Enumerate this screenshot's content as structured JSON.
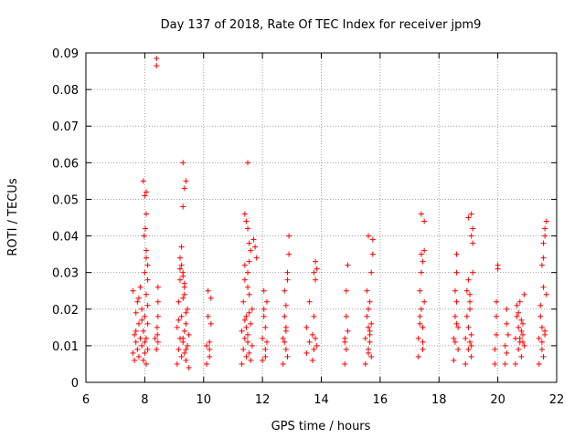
{
  "chart_data": {
    "type": "scatter",
    "title": "Day 137 of 2018, Rate Of TEC Index for receiver jpm9",
    "xlabel": "GPS time / hours",
    "ylabel": "ROTI / TECUs",
    "xlim": [
      6,
      22
    ],
    "ylim": [
      0,
      0.09
    ],
    "grid": true,
    "marker": "+",
    "marker_color": "#ff0000",
    "x_ticks": [
      6,
      8,
      10,
      12,
      14,
      16,
      18,
      20,
      22
    ],
    "x_tick_labels": [
      "6",
      "8",
      "10",
      "12",
      "14",
      "16",
      "18",
      "20",
      "22"
    ],
    "y_ticks": [
      0,
      0.01,
      0.02,
      0.03,
      0.04,
      0.05,
      0.06,
      0.07,
      0.08,
      0.09
    ],
    "y_tick_labels": [
      "0",
      "0.01",
      "0.02",
      "0.03",
      "0.04",
      "0.05",
      "0.06",
      "0.07",
      "0.08",
      "0.09"
    ],
    "series": [
      {
        "name": "ROTI",
        "x": [
          7.6,
          7.6,
          7.65,
          7.65,
          7.7,
          7.7,
          7.75,
          7.75,
          7.8,
          7.8,
          7.85,
          7.85,
          7.9,
          7.9,
          7.95,
          7.95,
          8.0,
          8.0,
          8.0,
          8.0,
          8.05,
          8.05,
          8.05,
          8.05,
          8.1,
          8.1,
          8.1,
          8.1,
          7.98,
          8.02,
          8.05,
          8.0,
          8.05,
          7.95,
          8.1,
          8.05,
          7.7,
          7.8,
          7.9,
          8.4,
          8.4,
          8.45,
          8.45,
          8.35,
          8.4,
          8.42,
          8.45,
          8.43,
          8.45,
          9.1,
          9.1,
          9.15,
          9.15,
          9.2,
          9.2,
          9.25,
          9.25,
          9.3,
          9.3,
          9.35,
          9.35,
          9.4,
          9.4,
          9.45,
          9.45,
          9.5,
          9.5,
          9.2,
          9.25,
          9.3,
          9.35,
          9.25,
          9.3,
          9.35,
          9.4,
          9.3,
          9.35,
          9.4,
          9.3,
          9.35,
          9.2,
          9.3,
          9.4,
          9.15,
          10.1,
          10.1,
          10.15,
          10.15,
          10.2,
          10.2,
          10.25,
          10.25,
          10.2,
          11.3,
          11.3,
          11.35,
          11.35,
          11.4,
          11.4,
          11.45,
          11.45,
          11.5,
          11.5,
          11.55,
          11.55,
          11.6,
          11.6,
          11.65,
          11.65,
          11.4,
          11.45,
          11.5,
          11.55,
          11.4,
          11.5,
          11.6,
          11.55,
          11.4,
          11.5,
          11.7,
          11.75,
          11.8,
          11.5,
          11.45,
          11.55,
          12.0,
          12.0,
          12.05,
          12.05,
          12.1,
          12.1,
          12.15,
          12.15,
          12.1,
          12.05,
          12.7,
          12.7,
          12.75,
          12.75,
          12.8,
          12.8,
          12.85,
          12.85,
          12.9,
          12.9,
          12.8,
          12.75,
          12.85,
          12.8,
          13.5,
          13.5,
          13.6,
          13.6,
          13.7,
          13.7,
          13.75,
          13.75,
          13.8,
          13.8,
          13.85,
          13.75,
          13.8,
          13.85,
          14.8,
          14.8,
          14.85,
          14.85,
          14.9,
          14.9,
          14.85,
          14.8,
          15.5,
          15.5,
          15.55,
          15.55,
          15.6,
          15.6,
          15.65,
          15.65,
          15.7,
          15.7,
          15.75,
          15.75,
          15.6,
          15.65,
          15.7,
          15.6,
          15.65,
          15.6,
          17.3,
          17.3,
          17.35,
          17.35,
          17.4,
          17.4,
          17.45,
          17.45,
          17.5,
          17.5,
          17.4,
          17.45,
          17.4,
          17.45,
          17.35,
          17.5,
          18.5,
          18.5,
          18.55,
          18.55,
          18.6,
          18.6,
          18.65,
          18.65,
          18.6,
          18.55,
          18.6,
          18.9,
          18.9,
          18.95,
          18.95,
          19.0,
          19.0,
          19.05,
          19.05,
          19.1,
          19.1,
          19.15,
          19.15,
          19.0,
          19.05,
          19.1,
          19.1,
          19.15,
          19.0,
          19.05,
          19.1,
          19.9,
          19.9,
          19.95,
          19.95,
          20.0,
          20.0,
          19.95,
          20.25,
          20.25,
          20.3,
          20.3,
          20.3,
          20.35,
          20.6,
          20.6,
          20.65,
          20.65,
          20.7,
          20.7,
          20.75,
          20.75,
          20.8,
          20.8,
          20.85,
          20.85,
          20.9,
          20.9,
          20.7,
          20.75,
          20.8,
          20.85,
          21.4,
          21.4,
          21.45,
          21.45,
          21.5,
          21.5,
          21.55,
          21.55,
          21.6,
          21.6,
          21.65,
          21.65,
          21.5,
          21.55,
          21.6,
          21.55,
          21.6,
          21.5
        ],
        "y": [
          0.008,
          0.025,
          0.006,
          0.013,
          0.019,
          0.011,
          0.022,
          0.009,
          0.016,
          0.007,
          0.026,
          0.012,
          0.01,
          0.02,
          0.014,
          0.006,
          0.018,
          0.011,
          0.03,
          0.008,
          0.034,
          0.024,
          0.012,
          0.005,
          0.028,
          0.016,
          0.009,
          0.021,
          0.04,
          0.042,
          0.046,
          0.051,
          0.052,
          0.055,
          0.032,
          0.036,
          0.014,
          0.023,
          0.017,
          0.0885,
          0.0865,
          0.026,
          0.018,
          0.012,
          0.009,
          0.015,
          0.022,
          0.013,
          0.011,
          0.005,
          0.015,
          0.009,
          0.022,
          0.012,
          0.028,
          0.007,
          0.018,
          0.03,
          0.011,
          0.024,
          0.008,
          0.016,
          0.006,
          0.02,
          0.01,
          0.013,
          0.004,
          0.034,
          0.032,
          0.029,
          0.026,
          0.037,
          0.048,
          0.053,
          0.055,
          0.06,
          0.014,
          0.019,
          0.023,
          0.027,
          0.031,
          0.012,
          0.009,
          0.017,
          0.005,
          0.01,
          0.018,
          0.025,
          0.007,
          0.011,
          0.016,
          0.023,
          0.009,
          0.005,
          0.014,
          0.009,
          0.022,
          0.012,
          0.028,
          0.007,
          0.018,
          0.03,
          0.011,
          0.024,
          0.008,
          0.016,
          0.006,
          0.02,
          0.01,
          0.046,
          0.044,
          0.042,
          0.033,
          0.032,
          0.026,
          0.036,
          0.038,
          0.017,
          0.013,
          0.039,
          0.037,
          0.034,
          0.06,
          0.015,
          0.019,
          0.006,
          0.012,
          0.018,
          0.025,
          0.009,
          0.015,
          0.022,
          0.011,
          0.007,
          0.02,
          0.005,
          0.012,
          0.018,
          0.025,
          0.009,
          0.015,
          0.028,
          0.03,
          0.035,
          0.04,
          0.021,
          0.011,
          0.007,
          0.014,
          0.008,
          0.015,
          0.011,
          0.022,
          0.006,
          0.013,
          0.009,
          0.018,
          0.028,
          0.033,
          0.031,
          0.03,
          0.012,
          0.01,
          0.005,
          0.011,
          0.018,
          0.025,
          0.032,
          0.014,
          0.009,
          0.012,
          0.005,
          0.012,
          0.018,
          0.025,
          0.009,
          0.015,
          0.022,
          0.011,
          0.007,
          0.03,
          0.035,
          0.039,
          0.04,
          0.014,
          0.016,
          0.008,
          0.013,
          0.02,
          0.007,
          0.012,
          0.018,
          0.025,
          0.03,
          0.035,
          0.009,
          0.015,
          0.022,
          0.044,
          0.046,
          0.033,
          0.02,
          0.011,
          0.016,
          0.036,
          0.006,
          0.012,
          0.018,
          0.025,
          0.03,
          0.035,
          0.009,
          0.015,
          0.022,
          0.011,
          0.016,
          0.005,
          0.012,
          0.018,
          0.025,
          0.009,
          0.015,
          0.022,
          0.011,
          0.046,
          0.04,
          0.038,
          0.03,
          0.028,
          0.02,
          0.013,
          0.007,
          0.042,
          0.045,
          0.024,
          0.01,
          0.005,
          0.009,
          0.013,
          0.022,
          0.031,
          0.032,
          0.018,
          0.005,
          0.01,
          0.016,
          0.02,
          0.008,
          0.013,
          0.005,
          0.012,
          0.018,
          0.021,
          0.009,
          0.015,
          0.022,
          0.011,
          0.007,
          0.014,
          0.016,
          0.013,
          0.024,
          0.01,
          0.019,
          0.012,
          0.017,
          0.011,
          0.005,
          0.012,
          0.018,
          0.021,
          0.009,
          0.015,
          0.034,
          0.038,
          0.04,
          0.042,
          0.044,
          0.024,
          0.011,
          0.007,
          0.014,
          0.026,
          0.013,
          0.032
        ]
      }
    ]
  }
}
